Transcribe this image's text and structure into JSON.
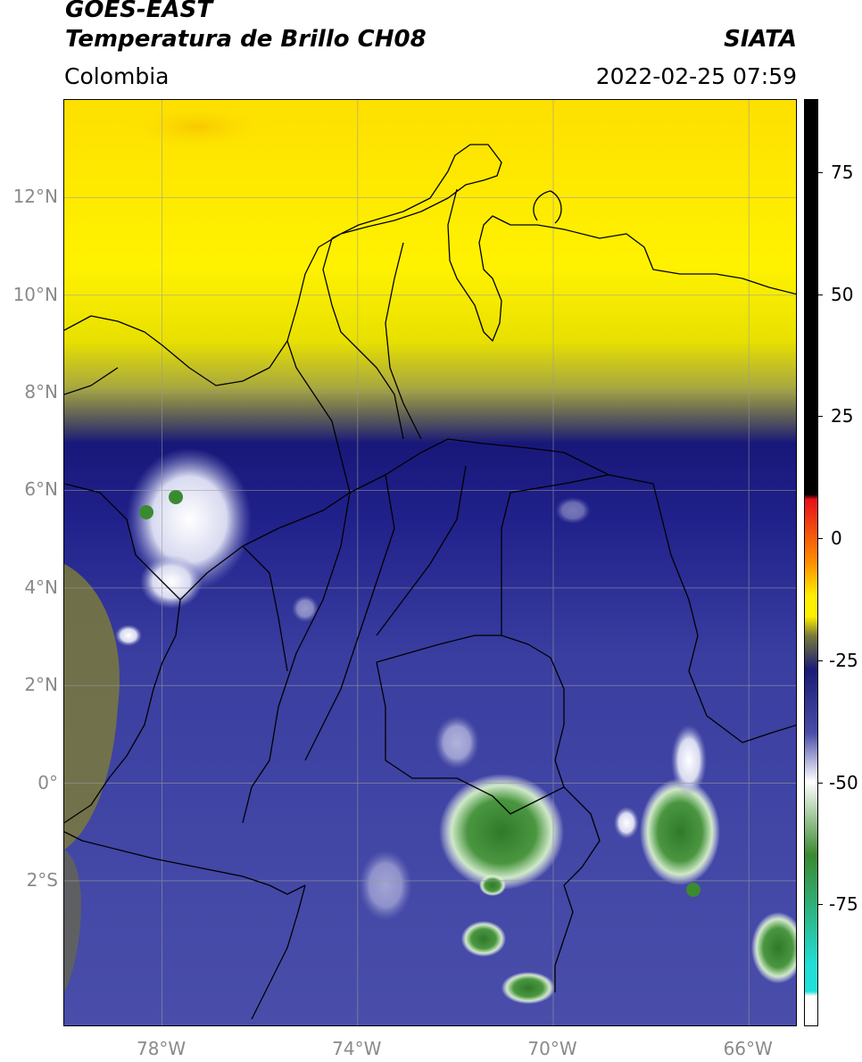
{
  "header": {
    "line1": "GOES-EAST",
    "line2": "Temperatura de Brillo CH08",
    "region": "Colombia",
    "source": "SIATA",
    "timestamp": "2022-02-25 07:59"
  },
  "map": {
    "lat_ticks": [
      {
        "lat": 12,
        "label": "12°N"
      },
      {
        "lat": 10,
        "label": "10°N"
      },
      {
        "lat": 8,
        "label": "8°N"
      },
      {
        "lat": 6,
        "label": "6°N"
      },
      {
        "lat": 4,
        "label": "4°N"
      },
      {
        "lat": 2,
        "label": "2°N"
      },
      {
        "lat": 0,
        "label": "0°"
      },
      {
        "lat": -2,
        "label": "2°S"
      }
    ],
    "lon_ticks": [
      {
        "lon": -78,
        "label": "78°W"
      },
      {
        "lon": -74,
        "label": "74°W"
      },
      {
        "lon": -70,
        "label": "70°W"
      },
      {
        "lon": -66,
        "label": "66°W"
      }
    ],
    "extent": {
      "lon_min": -80,
      "lon_max": -65,
      "lat_min": -5,
      "lat_max": 14
    }
  },
  "colorbar": {
    "ticks": [
      {
        "value": 75,
        "label": "75"
      },
      {
        "value": 50,
        "label": "50"
      },
      {
        "value": 25,
        "label": "25"
      },
      {
        "value": 0,
        "label": "0"
      },
      {
        "value": -25,
        "label": "-25"
      },
      {
        "value": -50,
        "label": "-50"
      },
      {
        "value": -75,
        "label": "-75"
      }
    ],
    "range": [
      -100,
      90
    ],
    "colors": {
      "black": "#000000",
      "red": "#e8101a",
      "orange": "#ff9000",
      "yellow": "#fff000",
      "olive": "#7a7a3a",
      "navy": "#1a1a78",
      "blue": "#4a4ea8",
      "white": "#ffffff",
      "green": "#3a8a30",
      "cyan": "#20e0d8"
    }
  }
}
